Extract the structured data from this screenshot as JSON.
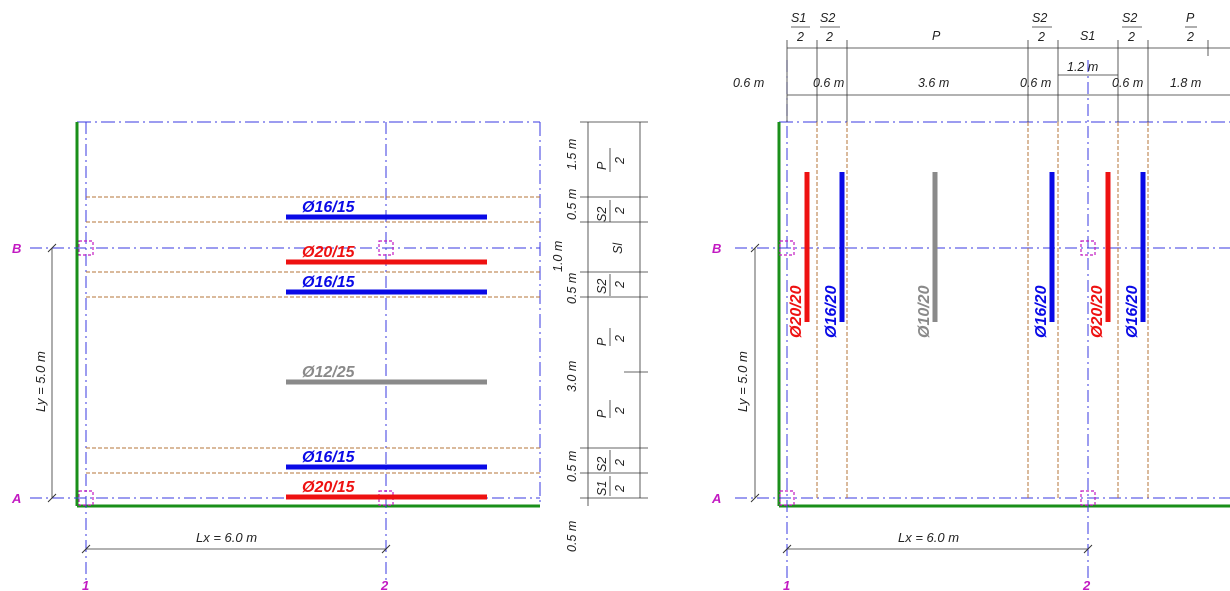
{
  "colors": {
    "blue": "#0a0ae6",
    "red": "#ee1111",
    "gray": "#8a8a8a",
    "green": "#1a8f1a",
    "magenta": "#c21ac2",
    "grid_line": "#3a3ae0",
    "strip_line": "#b5763a",
    "dim": "#333333"
  },
  "left": {
    "axis_rows": {
      "top": "B",
      "bottom": "A"
    },
    "axis_cols": {
      "left": "1",
      "right": "2"
    },
    "lx_label": "Lx = 6.0 m",
    "ly_label": "Ly = 5.0 m",
    "rebars": [
      {
        "label": "Ø16/15",
        "color": "blue"
      },
      {
        "label": "Ø20/15",
        "color": "red"
      },
      {
        "label": "Ø16/15",
        "color": "blue"
      },
      {
        "label": "Ø12/25",
        "color": "gray"
      },
      {
        "label": "Ø16/15",
        "color": "blue"
      },
      {
        "label": "Ø20/15",
        "color": "red"
      }
    ],
    "dims_lengths": [
      "1.5 m",
      "0.5 m",
      "1.0 m",
      "0.5 m",
      "3.0 m",
      "0.5 m",
      "0.5 m"
    ],
    "dims_strips": [
      "P",
      "2",
      "S2",
      "2",
      "Sl",
      "S2",
      "2",
      "P",
      "2",
      "P",
      "2",
      "S2",
      "2",
      "S1",
      "2"
    ]
  },
  "right": {
    "axis_rows": {
      "top": "B",
      "bottom": "A"
    },
    "axis_cols": {
      "left": "1",
      "right": "2"
    },
    "lx_label": "Lx = 6.0 m",
    "ly_label": "Ly = 5.0 m",
    "rebars": [
      {
        "label": "Ø20/20",
        "color": "red"
      },
      {
        "label": "Ø16/20",
        "color": "blue"
      },
      {
        "label": "Ø10/20",
        "color": "gray"
      },
      {
        "label": "Ø16/20",
        "color": "blue"
      },
      {
        "label": "Ø20/20",
        "color": "red"
      },
      {
        "label": "Ø16/20",
        "color": "blue"
      }
    ],
    "dims_lengths": [
      "0.6 m",
      "0.6 m",
      "3.6 m",
      "0.6 m",
      "1.2 m",
      "0.6 m",
      "1.8 m"
    ],
    "dims_strips": [
      "S1",
      "2",
      "S2",
      "2",
      "P",
      "S2",
      "2",
      "S1",
      "S2",
      "2",
      "P",
      "2"
    ]
  }
}
